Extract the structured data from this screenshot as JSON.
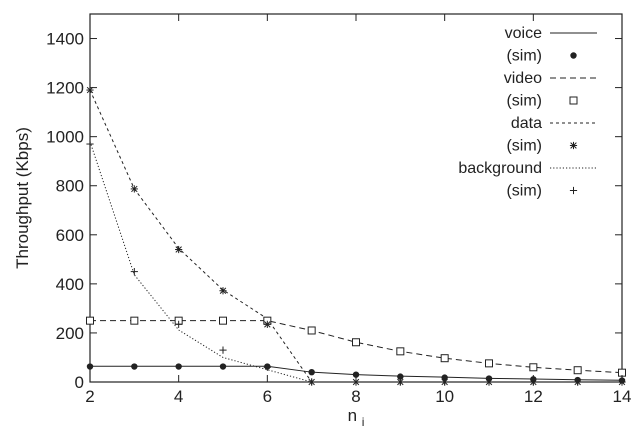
{
  "chart_data": {
    "type": "line",
    "title": "",
    "xlabel": "n",
    "xlabel_subscript": "i",
    "ylabel": "Throughput (Kbps)",
    "xlim": [
      2,
      14
    ],
    "ylim": [
      0,
      1500
    ],
    "xticks": [
      2,
      4,
      6,
      8,
      10,
      12,
      14
    ],
    "yticks": [
      0,
      200,
      400,
      600,
      800,
      1000,
      1200,
      1400
    ],
    "grid": false,
    "legend_position": "top-right",
    "x": [
      2,
      3,
      4,
      5,
      6,
      7,
      8,
      9,
      10,
      11,
      12,
      13,
      14
    ],
    "series": [
      {
        "name": "voice",
        "line_style": "solid",
        "values": [
          64,
          64,
          64,
          64,
          64,
          40,
          30,
          24,
          20,
          15,
          12,
          9,
          7
        ]
      },
      {
        "name": "video",
        "line_style": "dashed",
        "values": [
          250,
          250,
          250,
          250,
          250,
          210,
          162,
          125,
          97,
          76,
          60,
          48,
          38
        ]
      },
      {
        "name": "data",
        "line_style": "short-dashed",
        "values": [
          1190,
          787,
          545,
          375,
          258,
          0,
          0,
          0,
          0,
          0,
          0,
          0,
          0
        ]
      },
      {
        "name": "background",
        "line_style": "dotted",
        "values": [
          980,
          437,
          212,
          100,
          50,
          0,
          0,
          0,
          0,
          0,
          0,
          0,
          0
        ]
      }
    ],
    "sim_series": [
      {
        "name": "(sim)",
        "of": "voice",
        "marker": "filled-circle",
        "values": [
          63,
          63,
          63,
          63,
          63,
          40,
          30,
          22,
          18,
          14,
          11,
          8,
          6
        ]
      },
      {
        "name": "(sim)",
        "of": "video",
        "marker": "open-square",
        "values": [
          250,
          250,
          250,
          250,
          250,
          210,
          162,
          125,
          97,
          76,
          60,
          48,
          38
        ]
      },
      {
        "name": "(sim)",
        "of": "data",
        "marker": "asterisk",
        "values": [
          1190,
          787,
          540,
          372,
          235,
          0,
          0,
          0,
          0,
          0,
          0,
          0,
          0
        ]
      },
      {
        "name": "(sim)",
        "of": "background",
        "marker": "plus",
        "values": [
          970,
          450,
          235,
          130,
          60,
          0,
          0,
          0,
          0,
          0,
          0,
          0,
          0
        ]
      }
    ],
    "legend": [
      {
        "label": "voice",
        "kind": "line",
        "series": "voice"
      },
      {
        "label": "(sim)",
        "kind": "marker",
        "series": "voice"
      },
      {
        "label": "video",
        "kind": "line",
        "series": "video"
      },
      {
        "label": "(sim)",
        "kind": "marker",
        "series": "video"
      },
      {
        "label": "data",
        "kind": "line",
        "series": "data"
      },
      {
        "label": "(sim)",
        "kind": "marker",
        "series": "data"
      },
      {
        "label": "background",
        "kind": "line",
        "series": "background"
      },
      {
        "label": "(sim)",
        "kind": "marker",
        "series": "background"
      }
    ],
    "colors": {
      "line": "#222222",
      "axis": "#222222",
      "background": "#ffffff"
    }
  }
}
